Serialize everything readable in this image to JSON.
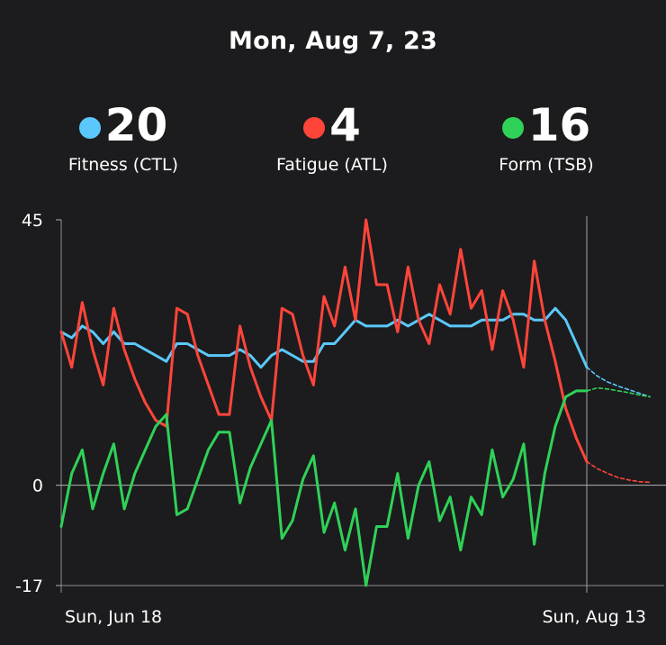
{
  "header": {
    "date": "Mon, Aug 7, 23"
  },
  "metrics": [
    {
      "id": "fitness",
      "value": "20",
      "label": "Fitness (CTL)",
      "color": "#5ac8fa"
    },
    {
      "id": "fatigue",
      "value": "4",
      "label": "Fatigue (ATL)",
      "color": "#ff453a"
    },
    {
      "id": "form",
      "value": "16",
      "label": "Form (TSB)",
      "color": "#30d158"
    }
  ],
  "chart_data": {
    "type": "line",
    "x_start": "Sun, Jun 18",
    "x_end": "Sun, Aug 13",
    "x_day_range": [
      0,
      56
    ],
    "xticks": [
      {
        "day": 0,
        "label": "Sun, Jun 18"
      },
      {
        "day": 56,
        "label": "Sun, Aug 13"
      }
    ],
    "yticks": [
      45,
      0,
      -17
    ],
    "ylim": [
      -17,
      45
    ],
    "selected_day": 50,
    "projection_start_day": 50,
    "series": [
      {
        "name": "Fitness (CTL)",
        "color": "#5ac8fa",
        "actual": [
          [
            0,
            26
          ],
          [
            1,
            25
          ],
          [
            2,
            27
          ],
          [
            3,
            26
          ],
          [
            4,
            24
          ],
          [
            5,
            26
          ],
          [
            6,
            24
          ],
          [
            7,
            24
          ],
          [
            8,
            23
          ],
          [
            9,
            22
          ],
          [
            10,
            21
          ],
          [
            11,
            24
          ],
          [
            12,
            24
          ],
          [
            13,
            23
          ],
          [
            14,
            22
          ],
          [
            15,
            22
          ],
          [
            16,
            22
          ],
          [
            17,
            23
          ],
          [
            18,
            22
          ],
          [
            19,
            20
          ],
          [
            20,
            22
          ],
          [
            21,
            23
          ],
          [
            22,
            22
          ],
          [
            23,
            21
          ],
          [
            24,
            21
          ],
          [
            25,
            24
          ],
          [
            26,
            24
          ],
          [
            27,
            26
          ],
          [
            28,
            28
          ],
          [
            29,
            27
          ],
          [
            30,
            27
          ],
          [
            31,
            27
          ],
          [
            32,
            28
          ],
          [
            33,
            27
          ],
          [
            34,
            28
          ],
          [
            35,
            29
          ],
          [
            36,
            28
          ],
          [
            37,
            27
          ],
          [
            38,
            27
          ],
          [
            39,
            27
          ],
          [
            40,
            28
          ],
          [
            41,
            28
          ],
          [
            42,
            28
          ],
          [
            43,
            29
          ],
          [
            44,
            29
          ],
          [
            45,
            28
          ],
          [
            46,
            28
          ],
          [
            47,
            30
          ],
          [
            48,
            28
          ],
          [
            49,
            24
          ],
          [
            50,
            20
          ]
        ],
        "projected": [
          [
            50,
            20
          ],
          [
            51,
            18.5
          ],
          [
            52,
            17.5
          ],
          [
            53,
            16.8
          ],
          [
            54,
            16.2
          ],
          [
            55,
            15.6
          ],
          [
            56,
            15
          ]
        ]
      },
      {
        "name": "Fatigue (ATL)",
        "color": "#ff453a",
        "actual": [
          [
            0,
            26
          ],
          [
            1,
            20
          ],
          [
            2,
            31
          ],
          [
            3,
            23
          ],
          [
            4,
            17
          ],
          [
            5,
            30
          ],
          [
            6,
            23
          ],
          [
            7,
            18
          ],
          [
            8,
            14
          ],
          [
            9,
            11
          ],
          [
            10,
            10
          ],
          [
            11,
            30
          ],
          [
            12,
            29
          ],
          [
            13,
            22
          ],
          [
            14,
            17
          ],
          [
            15,
            12
          ],
          [
            16,
            12
          ],
          [
            17,
            27
          ],
          [
            18,
            20
          ],
          [
            19,
            15
          ],
          [
            20,
            11
          ],
          [
            21,
            30
          ],
          [
            22,
            29
          ],
          [
            23,
            22
          ],
          [
            24,
            17
          ],
          [
            25,
            32
          ],
          [
            26,
            27
          ],
          [
            27,
            37
          ],
          [
            28,
            28
          ],
          [
            29,
            45
          ],
          [
            30,
            34
          ],
          [
            31,
            34
          ],
          [
            32,
            26
          ],
          [
            33,
            37
          ],
          [
            34,
            28
          ],
          [
            35,
            24
          ],
          [
            36,
            34
          ],
          [
            37,
            29
          ],
          [
            38,
            40
          ],
          [
            39,
            30
          ],
          [
            40,
            33
          ],
          [
            41,
            23
          ],
          [
            42,
            33
          ],
          [
            43,
            28
          ],
          [
            44,
            20
          ],
          [
            45,
            38
          ],
          [
            46,
            28
          ],
          [
            47,
            21
          ],
          [
            48,
            13
          ],
          [
            49,
            8
          ],
          [
            50,
            4
          ]
        ],
        "projected": [
          [
            50,
            4
          ],
          [
            51,
            2.8
          ],
          [
            52,
            2
          ],
          [
            53,
            1.3
          ],
          [
            54,
            0.9
          ],
          [
            55,
            0.6
          ],
          [
            56,
            0.5
          ]
        ]
      },
      {
        "name": "Form (TSB)",
        "color": "#30d158",
        "actual": [
          [
            0,
            -7
          ],
          [
            1,
            2
          ],
          [
            2,
            6
          ],
          [
            3,
            -4
          ],
          [
            4,
            2
          ],
          [
            5,
            7
          ],
          [
            6,
            -4
          ],
          [
            7,
            2
          ],
          [
            8,
            6
          ],
          [
            9,
            10
          ],
          [
            10,
            12
          ],
          [
            11,
            -5
          ],
          [
            12,
            -4
          ],
          [
            13,
            1
          ],
          [
            14,
            6
          ],
          [
            15,
            9
          ],
          [
            16,
            9
          ],
          [
            17,
            -3
          ],
          [
            18,
            3
          ],
          [
            19,
            7
          ],
          [
            20,
            11
          ],
          [
            21,
            -9
          ],
          [
            22,
            -6
          ],
          [
            23,
            1
          ],
          [
            24,
            5
          ],
          [
            25,
            -8
          ],
          [
            26,
            -3
          ],
          [
            27,
            -11
          ],
          [
            28,
            -4
          ],
          [
            29,
            -17
          ],
          [
            30,
            -7
          ],
          [
            31,
            -7
          ],
          [
            32,
            2
          ],
          [
            33,
            -9
          ],
          [
            34,
            0
          ],
          [
            35,
            4
          ],
          [
            36,
            -6
          ],
          [
            37,
            -2
          ],
          [
            38,
            -11
          ],
          [
            39,
            -2
          ],
          [
            40,
            -5
          ],
          [
            41,
            6
          ],
          [
            42,
            -2
          ],
          [
            43,
            1
          ],
          [
            44,
            7
          ],
          [
            45,
            -10
          ],
          [
            46,
            2
          ],
          [
            47,
            10
          ],
          [
            48,
            15
          ],
          [
            49,
            16
          ],
          [
            50,
            16
          ]
        ],
        "projected": [
          [
            50,
            16
          ],
          [
            51,
            16.5
          ],
          [
            52,
            16.3
          ],
          [
            53,
            16
          ],
          [
            54,
            15.7
          ],
          [
            55,
            15.3
          ],
          [
            56,
            15
          ]
        ]
      }
    ]
  }
}
